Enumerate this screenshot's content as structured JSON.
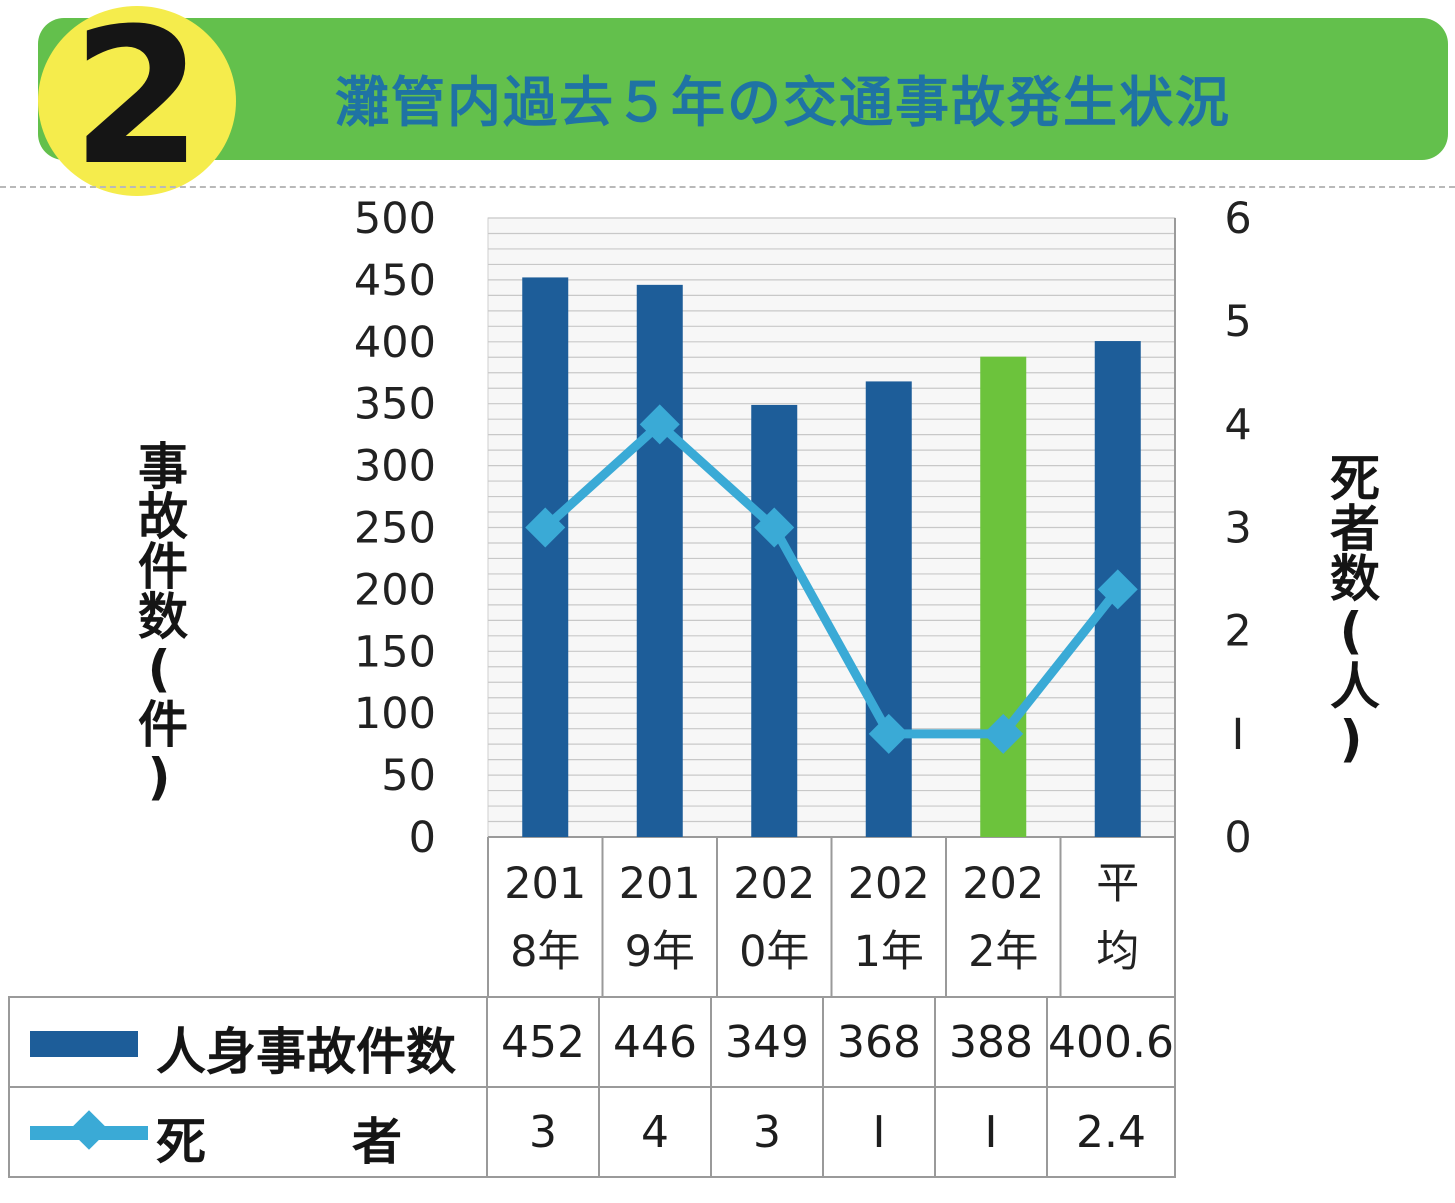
{
  "header": {
    "number": "2",
    "title": "灘管内過去５年の交通事故発生状況"
  },
  "colors": {
    "banner_green": "#63c04c",
    "number_circle": "#f5ec4c",
    "title_blue": "#1f73a4",
    "bar_blue": "#1d5d99",
    "bar_green": "#6cc33c",
    "line_cyan": "#3aaad6",
    "grid_gray": "#c8c8c8"
  },
  "chart_data": {
    "type": "bar",
    "categories": [
      [
        "201",
        "8年"
      ],
      [
        "201",
        "9年"
      ],
      [
        "202",
        "0年"
      ],
      [
        "202",
        "1年"
      ],
      [
        "202",
        "2年"
      ],
      [
        "平",
        "均"
      ]
    ],
    "series": [
      {
        "name": "人身事故件数",
        "type": "bar",
        "axis": "left",
        "values": [
          452,
          446,
          349,
          368,
          388,
          400.6
        ],
        "labels": [
          "452",
          "446",
          "349",
          "368",
          "388",
          "400.6"
        ],
        "highlight_index": 4
      },
      {
        "name": "死　者",
        "type": "line",
        "axis": "right",
        "marker": "diamond",
        "values": [
          3,
          4,
          3,
          1,
          1,
          2.4
        ],
        "labels": [
          "3",
          "4",
          "3",
          "Ⅰ",
          "Ⅰ",
          "2.4"
        ]
      }
    ],
    "ylabel": "事故件数(件)",
    "y2label": "死者数(人)",
    "ylim": [
      0,
      500
    ],
    "y2lim": [
      0,
      6
    ],
    "yticks": [
      "0",
      "50",
      "100",
      "150",
      "200",
      "250",
      "300",
      "350",
      "400",
      "450",
      "500"
    ],
    "y2ticks": [
      "0",
      "Ⅰ",
      "2",
      "3",
      "4",
      "5",
      "6"
    ],
    "grid": true,
    "data_table": true
  }
}
